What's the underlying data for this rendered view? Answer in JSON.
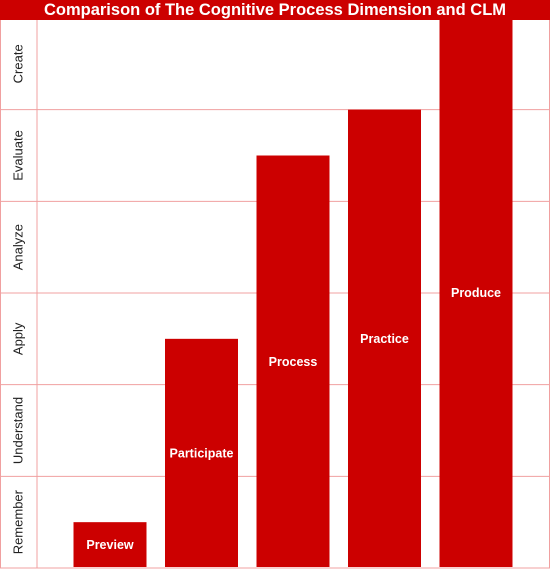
{
  "chart_data": {
    "type": "bar",
    "title": "Comparison of The Cognitive Process Dimension and CLM",
    "y_levels": [
      "Remember",
      "Understand",
      "Apply",
      "Analyze",
      "Evaluate",
      "Create"
    ],
    "categories": [
      "Preview",
      "Participate",
      "Process",
      "Practice",
      "Produce"
    ],
    "values": [
      0.5,
      2.5,
      4.5,
      5.0,
      6.0
    ],
    "ylim": [
      0,
      6
    ],
    "grid": true,
    "bar_labels_inside": true,
    "colors": {
      "bar": "#cc0000",
      "grid": "#f0a0a0",
      "title_bg": "#cc0000",
      "title_text": "#ffffff",
      "bar_label": "#ffffff"
    }
  }
}
